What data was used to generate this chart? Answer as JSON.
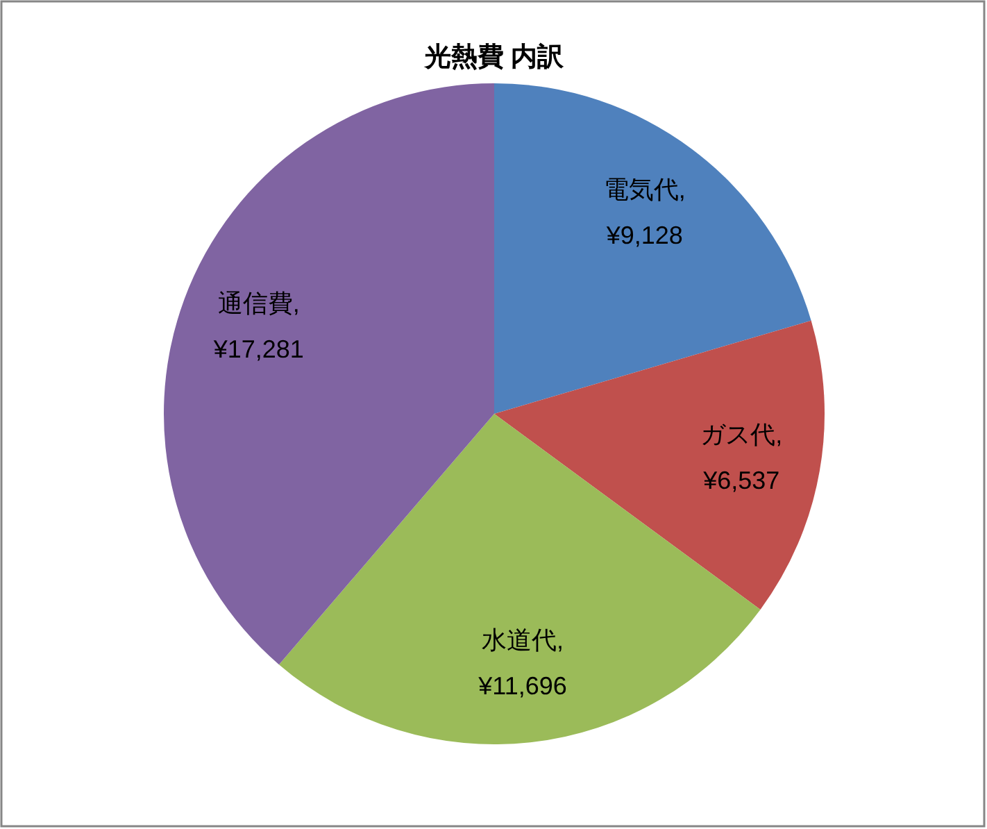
{
  "chart_data": {
    "type": "pie",
    "title": "光熱費 内訳",
    "categories": [
      "電気代",
      "ガス代",
      "水道代",
      "通信費"
    ],
    "values": [
      9128,
      6537,
      11696,
      17281
    ],
    "colors": [
      "#4f81bd",
      "#c0504d",
      "#9bbb59",
      "#8064a2"
    ],
    "value_labels": [
      ", ¥9,128",
      ", ¥6,537",
      ", ¥11,696",
      ", ¥17,281"
    ]
  }
}
